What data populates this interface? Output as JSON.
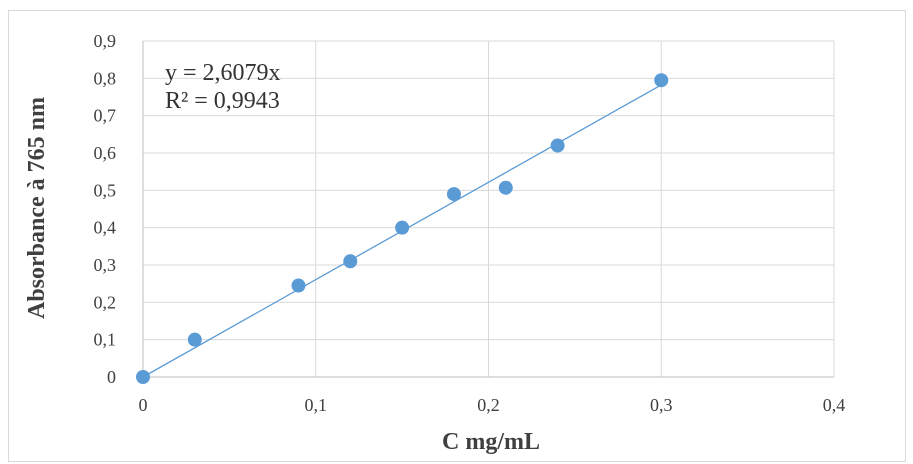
{
  "chart_data": {
    "type": "scatter",
    "xlabel": "C mg/mL",
    "ylabel": "Absorbance à 765 nm",
    "xlim": [
      0,
      0.4
    ],
    "ylim": [
      0,
      0.9
    ],
    "x_ticks": [
      "0",
      "0,1",
      "0,2",
      "0,3",
      "0,4"
    ],
    "y_ticks": [
      "0",
      "0,1",
      "0,2",
      "0,3",
      "0,4",
      "0,5",
      "0,6",
      "0,7",
      "0,8",
      "0,9"
    ],
    "grid": true,
    "series": [
      {
        "x": [
          0,
          0.03,
          0.09,
          0.12,
          0.15,
          0.18,
          0.21,
          0.24,
          0.3
        ],
        "y": [
          0,
          0.1,
          0.245,
          0.31,
          0.4,
          0.49,
          0.507,
          0.62,
          0.795
        ],
        "color": "#5b9bd5"
      }
    ],
    "trendline": {
      "slope": 2.6079,
      "color": "#5b9bd5",
      "equation": "y = 2,6079x",
      "r_squared": "R² = 0,9943"
    }
  }
}
